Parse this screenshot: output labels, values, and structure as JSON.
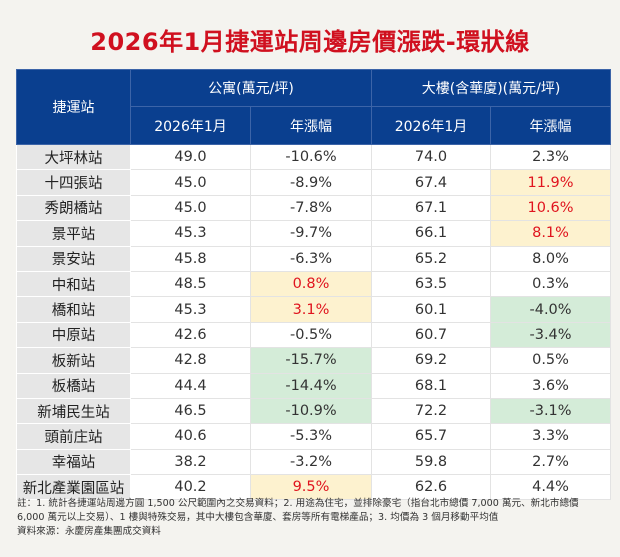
{
  "title": "2026年1月捷運站周邊房價漲跌-環狀線",
  "headers": {
    "station": "捷運站",
    "apartment": "公寓(萬元/坪)",
    "building": "大樓(含華廈)(萬元/坪)",
    "month": "2026年1月",
    "yoy": "年漲幅"
  },
  "colors": {
    "title": "#d0101f",
    "header_bg": "#0a3f8f",
    "highlight_up": "#fdf2cf",
    "highlight_down": "#d4ecd8",
    "up_text": "#e0141e"
  },
  "rows": [
    {
      "station": "大坪林站",
      "apt_price": "49.0",
      "apt_yoy": "-10.6%",
      "apt_hl": "",
      "bld_price": "74.0",
      "bld_yoy": "2.3%",
      "bld_hl": ""
    },
    {
      "station": "十四張站",
      "apt_price": "45.0",
      "apt_yoy": "-8.9%",
      "apt_hl": "",
      "bld_price": "67.4",
      "bld_yoy": "11.9%",
      "bld_hl": "yellow red"
    },
    {
      "station": "秀朗橋站",
      "apt_price": "45.0",
      "apt_yoy": "-7.8%",
      "apt_hl": "",
      "bld_price": "67.1",
      "bld_yoy": "10.6%",
      "bld_hl": "yellow red"
    },
    {
      "station": "景平站",
      "apt_price": "45.3",
      "apt_yoy": "-9.7%",
      "apt_hl": "",
      "bld_price": "66.1",
      "bld_yoy": "8.1%",
      "bld_hl": "yellow red"
    },
    {
      "station": "景安站",
      "apt_price": "45.8",
      "apt_yoy": "-6.3%",
      "apt_hl": "",
      "bld_price": "65.2",
      "bld_yoy": "8.0%",
      "bld_hl": ""
    },
    {
      "station": "中和站",
      "apt_price": "48.5",
      "apt_yoy": "0.8%",
      "apt_hl": "yellow red",
      "bld_price": "63.5",
      "bld_yoy": "0.3%",
      "bld_hl": ""
    },
    {
      "station": "橋和站",
      "apt_price": "45.3",
      "apt_yoy": "3.1%",
      "apt_hl": "yellow red",
      "bld_price": "60.1",
      "bld_yoy": "-4.0%",
      "bld_hl": "green"
    },
    {
      "station": "中原站",
      "apt_price": "42.6",
      "apt_yoy": "-0.5%",
      "apt_hl": "",
      "bld_price": "60.7",
      "bld_yoy": "-3.4%",
      "bld_hl": "green"
    },
    {
      "station": "板新站",
      "apt_price": "42.8",
      "apt_yoy": "-15.7%",
      "apt_hl": "green",
      "bld_price": "69.2",
      "bld_yoy": "0.5%",
      "bld_hl": ""
    },
    {
      "station": "板橋站",
      "apt_price": "44.4",
      "apt_yoy": "-14.4%",
      "apt_hl": "green",
      "bld_price": "68.1",
      "bld_yoy": "3.6%",
      "bld_hl": ""
    },
    {
      "station": "新埔民生站",
      "apt_price": "46.5",
      "apt_yoy": "-10.9%",
      "apt_hl": "green",
      "bld_price": "72.2",
      "bld_yoy": "-3.1%",
      "bld_hl": "green"
    },
    {
      "station": "頭前庄站",
      "apt_price": "40.6",
      "apt_yoy": "-5.3%",
      "apt_hl": "",
      "bld_price": "65.7",
      "bld_yoy": "3.3%",
      "bld_hl": ""
    },
    {
      "station": "幸福站",
      "apt_price": "38.2",
      "apt_yoy": "-3.2%",
      "apt_hl": "",
      "bld_price": "59.8",
      "bld_yoy": "2.7%",
      "bld_hl": ""
    },
    {
      "station": "新北產業園區站",
      "apt_price": "40.2",
      "apt_yoy": "9.5%",
      "apt_hl": "yellow red",
      "bld_price": "62.6",
      "bld_yoy": "4.4%",
      "bld_hl": ""
    }
  ],
  "notes": "註：1. 統計各捷運站周邊方圓 1,500 公尺範圍內之交易資料；2. 用途為住宅，並排除豪宅（指台北市總價 7,000 萬元、新北市總價 6,000 萬元以上交易）、1 樓與特殊交易，其中大樓包含華廈、套房等所有電梯產品；3. 均價為 3 個月移動平均值",
  "source": "資料來源：永慶房產集團成交資料"
}
